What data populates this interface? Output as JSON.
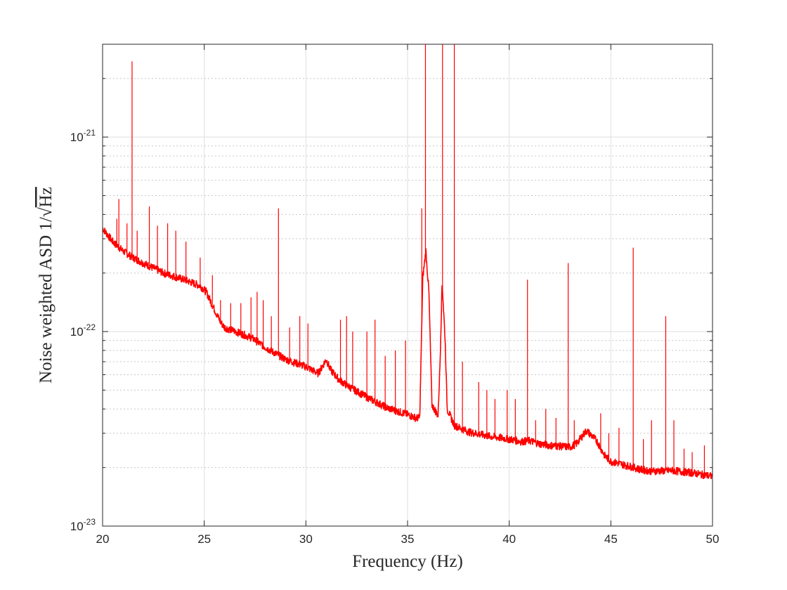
{
  "chart_data": {
    "type": "line",
    "xlabel": "Frequency (Hz)",
    "ylabel_main": "Noise weighted ASD 1/",
    "ylabel_sqrt": "Hz",
    "xlim": [
      20,
      50
    ],
    "ylim": [
      1e-23,
      3e-21
    ],
    "yscale": "log",
    "grid": true,
    "x_ticks": [
      20,
      25,
      30,
      35,
      40,
      45,
      50
    ],
    "x_tick_labels": [
      "20",
      "25",
      "30",
      "35",
      "40",
      "45",
      "50"
    ],
    "y_ticks": [
      1e-23,
      1e-22,
      1e-21
    ],
    "y_tick_bases": [
      "10",
      "10",
      "10"
    ],
    "y_tick_exponents": [
      "-23",
      "-22",
      "-21"
    ],
    "series": [
      {
        "color": "#ff0000",
        "baseline": [
          [
            20,
            3.4e-22
          ],
          [
            20.5,
            2.9e-22
          ],
          [
            21,
            2.6e-22
          ],
          [
            21.5,
            2.4e-22
          ],
          [
            22,
            2.25e-22
          ],
          [
            23,
            2e-22
          ],
          [
            24,
            1.85e-22
          ],
          [
            24.8,
            1.72e-22
          ],
          [
            25.1,
            1.6e-22
          ],
          [
            25.5,
            1.3e-22
          ],
          [
            25.8,
            1.12e-22
          ],
          [
            26,
            1.05e-22
          ],
          [
            27,
            9.6e-23
          ],
          [
            27.4,
            9.2e-23
          ],
          [
            28,
            8.3e-23
          ],
          [
            29,
            7.2e-23
          ],
          [
            30,
            6.6e-23
          ],
          [
            30.6,
            6.1e-23
          ],
          [
            30.8,
            6.6e-23
          ],
          [
            31,
            7.2e-23
          ],
          [
            31.2,
            6.4e-23
          ],
          [
            31.6,
            5.7e-23
          ],
          [
            32,
            5.3e-23
          ],
          [
            33,
            4.6e-23
          ],
          [
            34,
            4.05e-23
          ],
          [
            35,
            3.75e-23
          ],
          [
            35.4,
            3.6e-23
          ],
          [
            35.6,
            3.6e-23
          ],
          [
            35.75,
            1.9e-22
          ],
          [
            35.9,
            2.6e-22
          ],
          [
            36.05,
            1.6e-22
          ],
          [
            36.2,
            4.2e-23
          ],
          [
            36.5,
            3.7e-23
          ],
          [
            36.6,
            7e-23
          ],
          [
            36.7,
            1.8e-22
          ],
          [
            36.85,
            9e-23
          ],
          [
            36.95,
            4e-23
          ],
          [
            37.3,
            3.3e-23
          ],
          [
            38,
            3.05e-23
          ],
          [
            39,
            2.9e-23
          ],
          [
            40,
            2.8e-23
          ],
          [
            40.6,
            2.72e-23
          ],
          [
            41,
            2.75e-23
          ],
          [
            41.5,
            2.65e-23
          ],
          [
            42,
            2.6e-23
          ],
          [
            43,
            2.55e-23
          ],
          [
            43.3,
            2.65e-23
          ],
          [
            43.8,
            3.1e-23
          ],
          [
            44.3,
            2.75e-23
          ],
          [
            44.7,
            2.3e-23
          ],
          [
            45,
            2.15e-23
          ],
          [
            46,
            2.02e-23
          ],
          [
            46.5,
            1.95e-23
          ],
          [
            47,
            1.92e-23
          ],
          [
            48,
            1.93e-23
          ],
          [
            49,
            1.88e-23
          ],
          [
            50,
            1.8e-23
          ]
        ],
        "peaks": [
          [
            20.7,
            3.8e-22
          ],
          [
            20.8,
            4.8e-22
          ],
          [
            21.2,
            3.6e-22
          ],
          [
            21.45,
            2.45e-21
          ],
          [
            21.7,
            3.3e-22
          ],
          [
            22.3,
            4.4e-22
          ],
          [
            22.7,
            3.5e-22
          ],
          [
            23.2,
            3.6e-22
          ],
          [
            23.6,
            3.3e-22
          ],
          [
            24.1,
            2.9e-22
          ],
          [
            24.8,
            2.4e-22
          ],
          [
            25.4,
            1.95e-22
          ],
          [
            25.8,
            1.45e-22
          ],
          [
            26.3,
            1.4e-22
          ],
          [
            26.8,
            1.4e-22
          ],
          [
            27.3,
            1.5e-22
          ],
          [
            27.6,
            1.6e-22
          ],
          [
            27.9,
            1.45e-22
          ],
          [
            28.3,
            1.2e-22
          ],
          [
            28.65,
            4.3e-22
          ],
          [
            29.2,
            1.05e-22
          ],
          [
            29.7,
            1.2e-22
          ],
          [
            30.1,
            1.1e-22
          ],
          [
            31.7,
            1.15e-22
          ],
          [
            32.0,
            1.2e-22
          ],
          [
            32.3,
            1e-22
          ],
          [
            33.0,
            1e-22
          ],
          [
            33.4,
            1.15e-22
          ],
          [
            33.9,
            7.5e-23
          ],
          [
            34.4,
            8e-23
          ],
          [
            34.9,
            9e-23
          ],
          [
            35.7,
            4.3e-22
          ],
          [
            35.88,
            3e-21
          ],
          [
            36.72,
            3e-21
          ],
          [
            37.3,
            3e-21
          ],
          [
            37.7,
            7e-23
          ],
          [
            38.5,
            5.5e-23
          ],
          [
            38.9,
            5e-23
          ],
          [
            39.3,
            4.5e-23
          ],
          [
            39.9,
            5e-23
          ],
          [
            40.3,
            4.5e-23
          ],
          [
            40.9,
            1.85e-22
          ],
          [
            41.3,
            3.5e-23
          ],
          [
            41.8,
            4e-23
          ],
          [
            42.3,
            3.6e-23
          ],
          [
            42.9,
            2.25e-22
          ],
          [
            43.2,
            3.5e-23
          ],
          [
            44.5,
            3.8e-23
          ],
          [
            44.9,
            3e-23
          ],
          [
            45.4,
            3.2e-23
          ],
          [
            46.1,
            2.7e-22
          ],
          [
            46.6,
            2.8e-23
          ],
          [
            47.0,
            3.5e-23
          ],
          [
            47.7,
            1.2e-22
          ],
          [
            48.1,
            3.5e-23
          ],
          [
            48.6,
            2.5e-23
          ],
          [
            49.0,
            2.4e-23
          ],
          [
            49.6,
            2.6e-23
          ],
          [
            50.0,
            2.2e-23
          ]
        ]
      }
    ]
  }
}
